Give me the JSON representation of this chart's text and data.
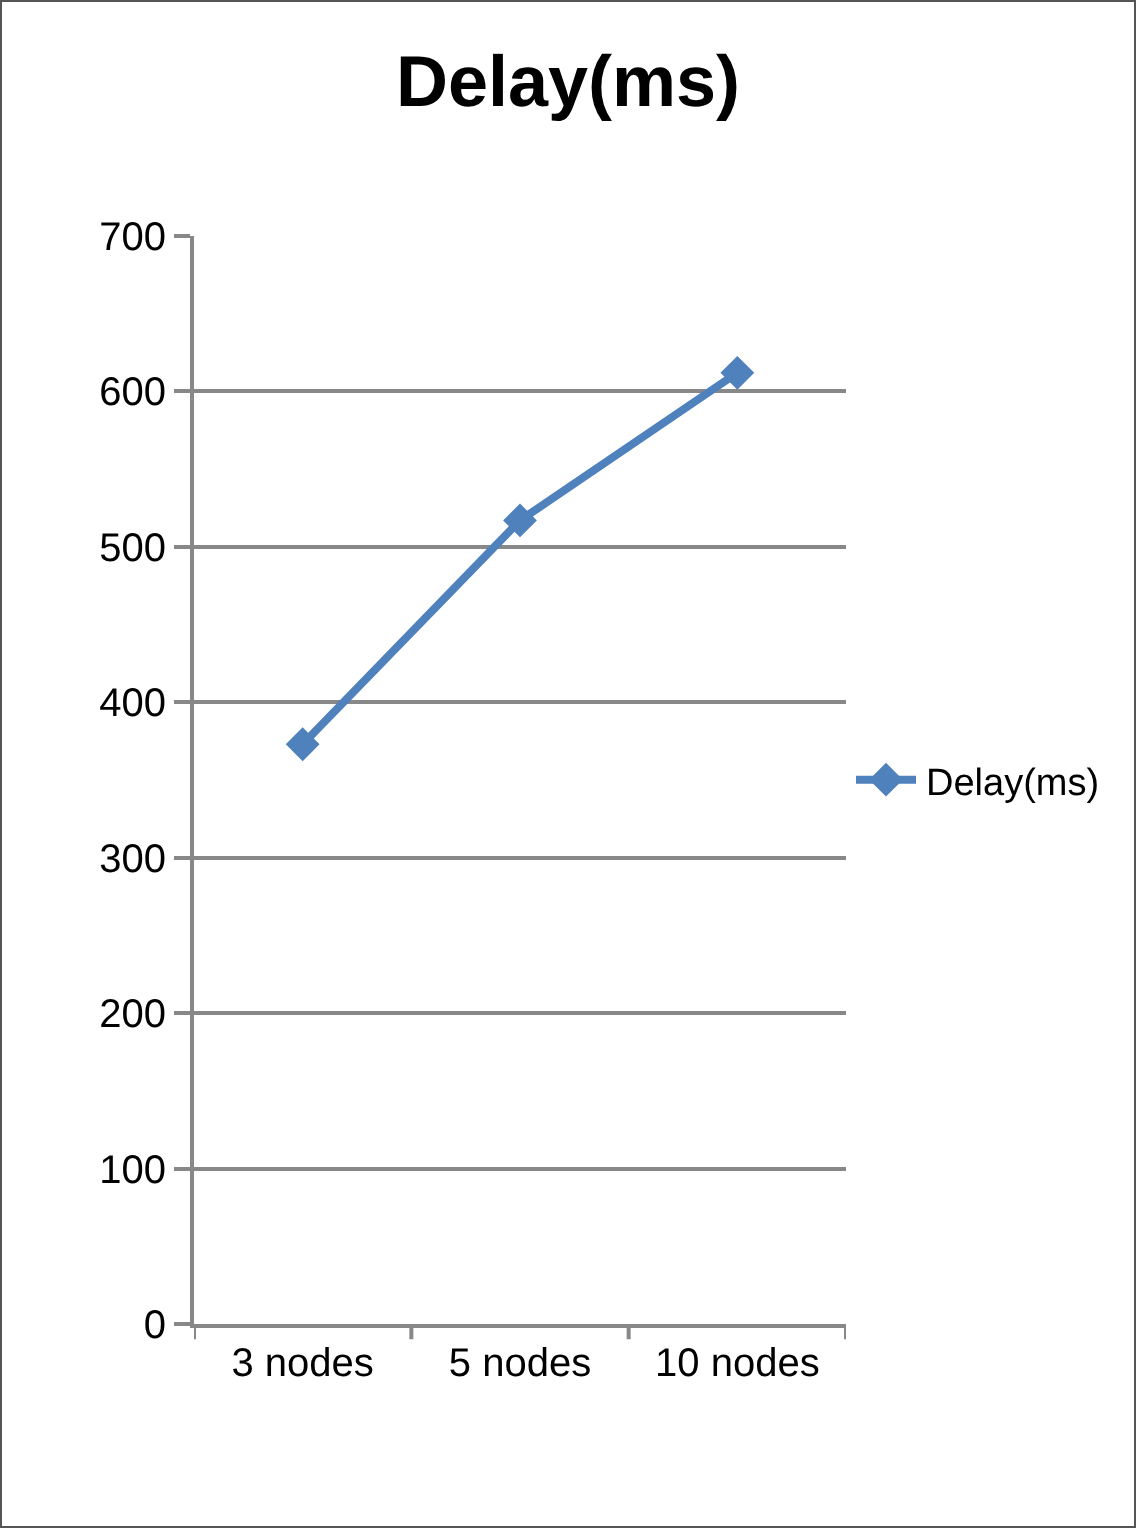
{
  "chart_data": {
    "type": "line",
    "title": "Delay(ms)",
    "categories": [
      "3 nodes",
      "5 nodes",
      "10 nodes"
    ],
    "series": [
      {
        "name": "Delay(ms)",
        "color": "#4f81bd",
        "values": [
          373,
          517,
          612
        ]
      }
    ],
    "ylim": [
      0,
      700
    ],
    "yticks": [
      0,
      100,
      200,
      300,
      400,
      500,
      600,
      700
    ],
    "grid": "y",
    "legend": "right",
    "marker": "diamond",
    "line_style": "solid"
  }
}
